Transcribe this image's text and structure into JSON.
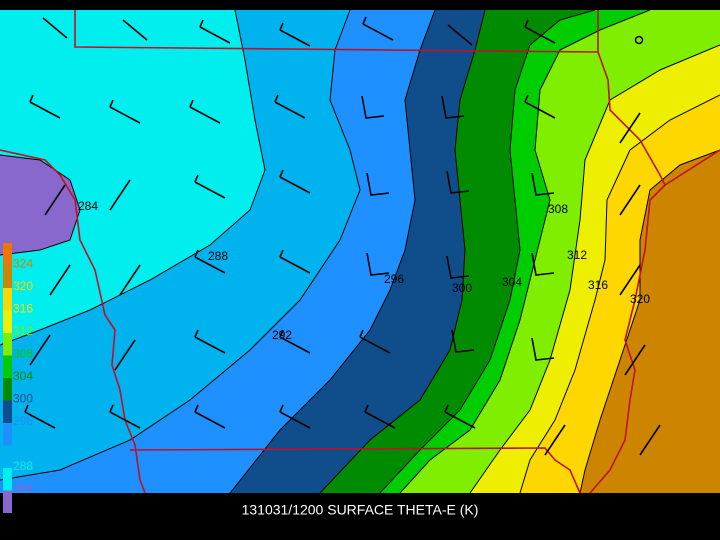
{
  "map": {
    "title": "131031/1200 SURFACE THETA-E (K)",
    "colorbar_labels": [
      "324",
      "320",
      "316",
      "312",
      "308",
      "304",
      "300",
      "296",
      "292",
      "288",
      "284"
    ],
    "contour_labels": [
      "284",
      "288",
      "292",
      "296",
      "300",
      "304",
      "308",
      "312",
      "316",
      "320"
    ]
  }
}
